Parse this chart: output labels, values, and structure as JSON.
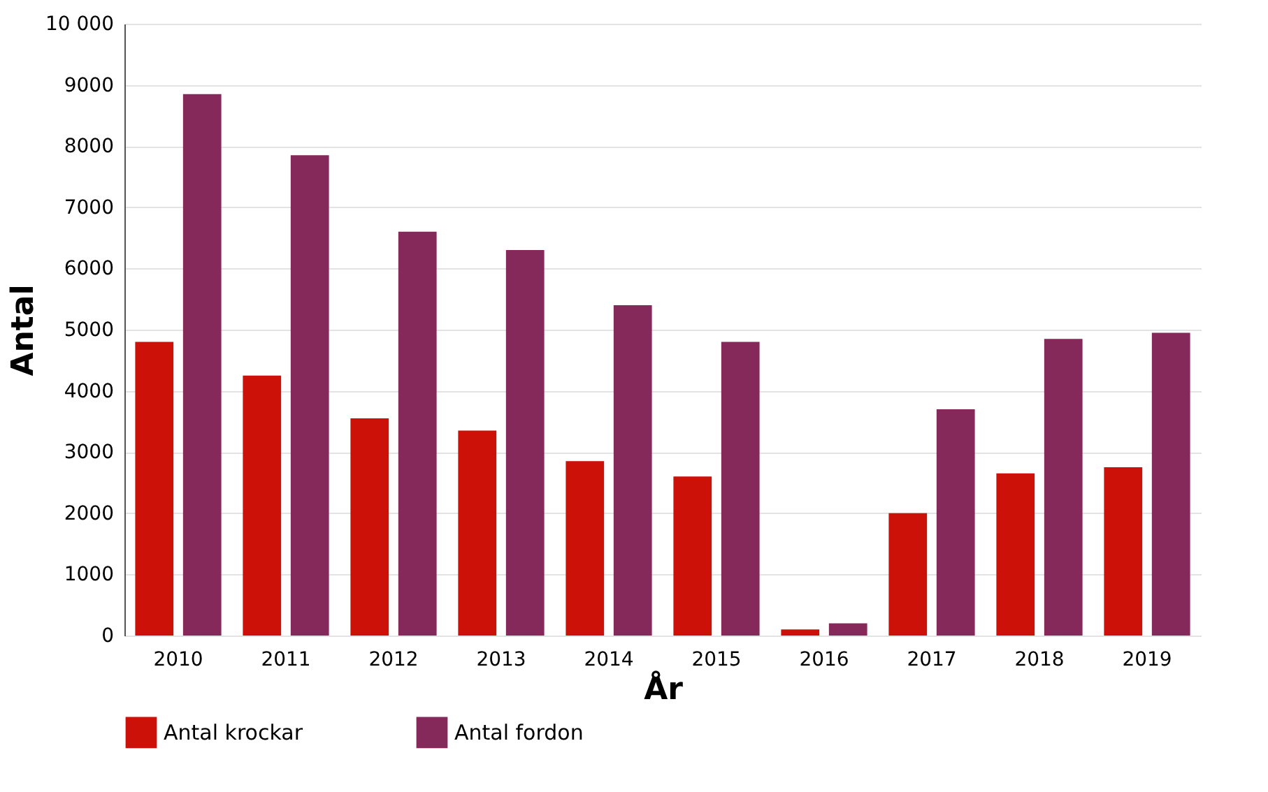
{
  "chart_data": {
    "type": "bar",
    "xlabel": "År",
    "ylabel": "Antal",
    "categories": [
      "2010",
      "2011",
      "2012",
      "2013",
      "2014",
      "2015",
      "2016",
      "2017",
      "2018",
      "2019"
    ],
    "series": [
      {
        "name": "Antal krockar",
        "color": "#cc1108",
        "values": [
          4800,
          4250,
          3550,
          3350,
          2850,
          2600,
          100,
          2000,
          2650,
          2750
        ]
      },
      {
        "name": "Antal fordon",
        "color": "#85285a",
        "values": [
          8850,
          7850,
          6600,
          6300,
          5400,
          4800,
          200,
          3700,
          4850,
          4950
        ]
      }
    ],
    "ylim": [
      0,
      10000
    ],
    "yticks": [
      0,
      1000,
      2000,
      3000,
      4000,
      5000,
      6000,
      7000,
      8000,
      9000,
      {
        "value": 10000,
        "label": "10 000"
      }
    ],
    "grid": "y",
    "legend": "bottom"
  }
}
